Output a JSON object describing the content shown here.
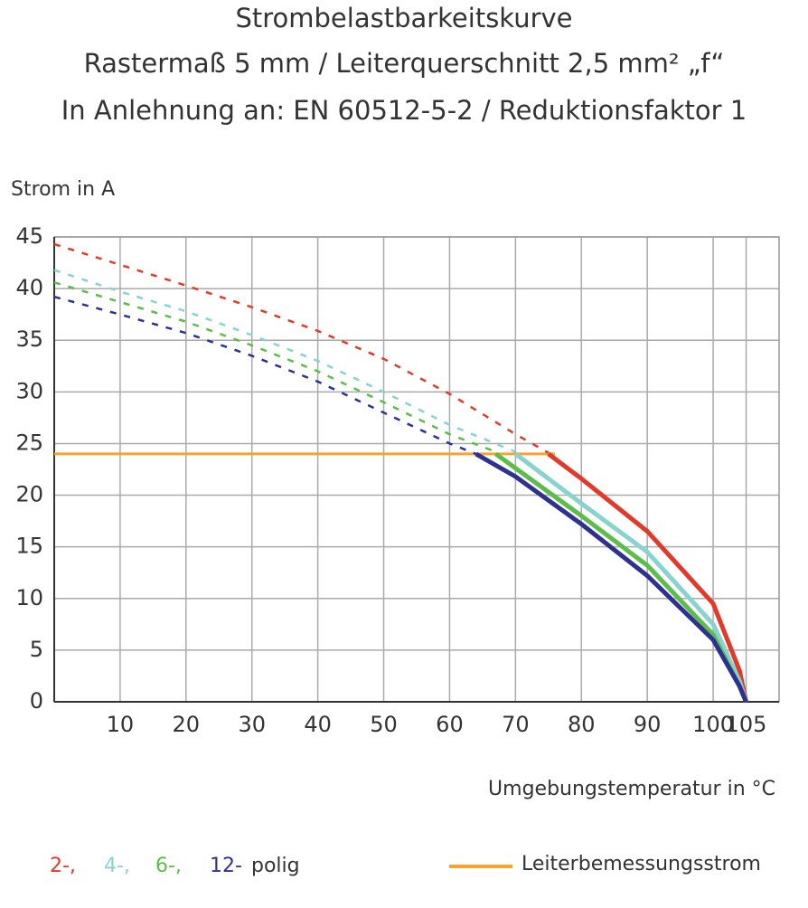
{
  "chart_data": {
    "type": "line",
    "title": [
      "Strombelastbarkeitskurve",
      "Rastermaß 5 mm / Leiterquerschnitt 2,5 mm² „f“",
      "In Anlehnung an: EN 60512-5-2 / Reduktionsfaktor 1"
    ],
    "y_label": "Strom in A",
    "x_label": "Umgebungstemperatur in °C",
    "xlim": [
      0,
      110
    ],
    "ylim": [
      0,
      45
    ],
    "xticks": [
      10,
      20,
      30,
      40,
      50,
      60,
      70,
      80,
      90,
      100,
      105
    ],
    "yticks": [
      0,
      5,
      10,
      15,
      20,
      25,
      30,
      35,
      40,
      45
    ],
    "grid": true,
    "legend_suffix": "polig",
    "series": [
      {
        "name": "2-,",
        "color": "#e2392b",
        "dashed": {
          "x": [
            0,
            10,
            20,
            30,
            40,
            50,
            60,
            70,
            75
          ],
          "values": [
            44.3,
            42.3,
            40.3,
            38.2,
            35.9,
            33.2,
            29.8,
            25.9,
            24.1
          ]
        },
        "solid": {
          "x": [
            75,
            80,
            90,
            100,
            104,
            105
          ],
          "values": [
            24,
            21.6,
            16.5,
            9.5,
            3,
            0
          ]
        }
      },
      {
        "name": "4-,",
        "color": "#86d3d0",
        "dashed": {
          "x": [
            0,
            10,
            20,
            30,
            40,
            50,
            60,
            70
          ],
          "values": [
            41.8,
            39.7,
            37.8,
            35.5,
            33,
            30,
            26.8,
            24.2
          ]
        },
        "solid": {
          "x": [
            70,
            80,
            90,
            100,
            104,
            105
          ],
          "values": [
            24,
            19.2,
            14.5,
            7.5,
            2,
            0
          ]
        }
      },
      {
        "name": "6-,",
        "color": "#5cbd4b",
        "dashed": {
          "x": [
            0,
            10,
            20,
            30,
            40,
            50,
            60,
            67
          ],
          "values": [
            40.6,
            38.7,
            36.8,
            34.5,
            32,
            29,
            25.9,
            24.2
          ]
        },
        "solid": {
          "x": [
            67,
            80,
            90,
            100,
            104,
            105
          ],
          "values": [
            24,
            18,
            13.2,
            6.5,
            1.5,
            0
          ]
        }
      },
      {
        "name": "12-",
        "color": "#2e3192",
        "dashed": {
          "x": [
            0,
            10,
            20,
            30,
            40,
            50,
            60,
            64
          ],
          "values": [
            39.2,
            37.5,
            35.7,
            33.5,
            31,
            28,
            25,
            24
          ]
        },
        "solid": {
          "x": [
            64,
            70,
            80,
            90,
            100,
            104,
            105
          ],
          "values": [
            24,
            21.8,
            17.2,
            12.2,
            6,
            1.5,
            0
          ]
        }
      }
    ],
    "rated_current": {
      "name": "Leiterbemessungsstrom",
      "color": "#f5a42f",
      "x": [
        0,
        76
      ],
      "values": [
        24,
        24
      ]
    }
  }
}
